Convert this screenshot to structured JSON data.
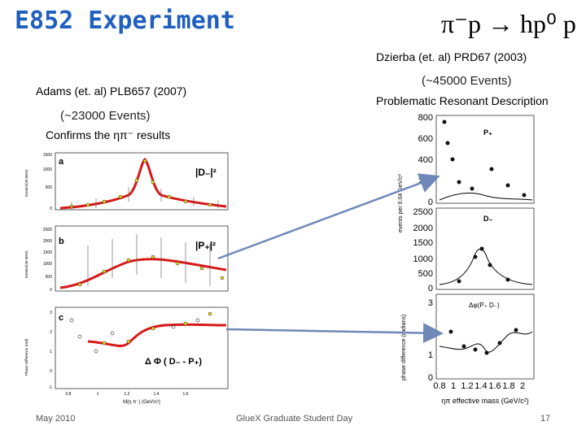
{
  "title_left": "E852 Experiment",
  "title_right": "π⁻p → hp⁰ p",
  "right_study": {
    "citation": "Dzierba (et. al) PRD67 (2003)",
    "events": "(~45000 Events)",
    "description": "Problematic Resonant Description"
  },
  "left_study": {
    "citation": "Adams  (et. al) PLB657 (2007)",
    "events": "(~23000 Events)",
    "note": "Confirms the ηπ⁻ results"
  },
  "left_figure": {
    "panels": [
      {
        "letter": "a",
        "label": "|D₋|²",
        "yticks": [
          "1500",
          "1000",
          "500",
          "0"
        ],
        "ylabel": "Events/(40 MeV)"
      },
      {
        "letter": "b",
        "label": "|P₊|²",
        "yticks": [
          "2500",
          "2000",
          "1500",
          "1000",
          "500",
          "0"
        ],
        "ylabel": "Events/(40 MeV)"
      },
      {
        "letter": "c",
        "label": "Δ Φ ( D₋ - P₊)",
        "yticks": [
          "3",
          "2",
          "1",
          "0",
          "-1"
        ],
        "ylabel": "Phase Difference (rad)"
      }
    ],
    "xticks": [
      "0.8",
      "1",
      "1.2",
      "1.4",
      "1.6"
    ],
    "xlabel": "M(η π⁻) (GeV/c²)"
  },
  "right_figure": {
    "panels": [
      {
        "label": "P₊",
        "yticks": [
          "800",
          "600",
          "400",
          "200",
          "0"
        ]
      },
      {
        "label": "D₋",
        "yticks": [
          "2500",
          "2000",
          "1500",
          "1000",
          "500",
          "0"
        ]
      },
      {
        "label": "Δφ(P₊  D₋)",
        "yticks": [
          "3",
          "2",
          "1",
          "0"
        ]
      }
    ],
    "xticks": [
      "0.8",
      "1",
      "1.2",
      "1.4",
      "1.6",
      "1.8",
      "2"
    ],
    "ylabel_top": "events per 0.04 GeV/c²",
    "ylabel_bottom": "phase difference (radians)",
    "xlabel": "ηπ effective mass (GeV/c²)"
  },
  "footer": {
    "date": "May 2010",
    "event": "GlueX Graduate Student Day",
    "page": "17"
  },
  "colors": {
    "title": "#1f5fbf",
    "fit_red": "#d81818",
    "arrow": "#6f88b8",
    "highlight": "#f0e020"
  }
}
